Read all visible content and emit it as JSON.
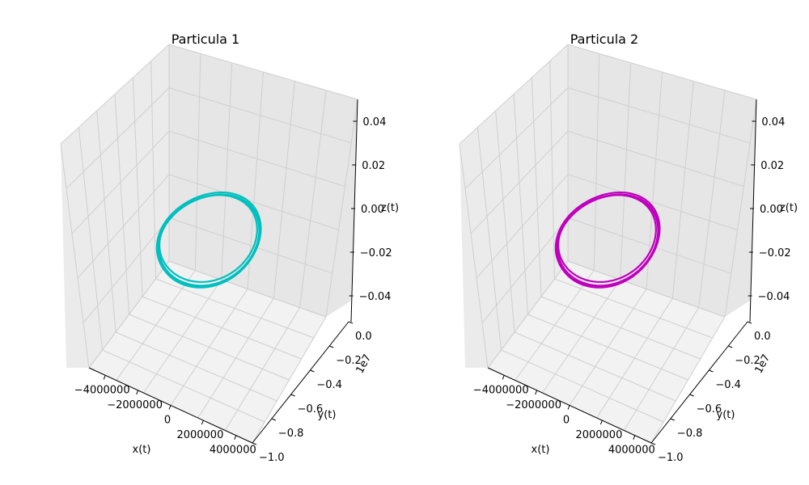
{
  "chart_data": [
    {
      "type": "line3d",
      "title": "Particula 1",
      "xlabel": "x(t)",
      "ylabel": "y(t)",
      "zlabel": "z(t)",
      "color": "#00bfbf",
      "x_ticks": [
        "−4000000",
        "−2000000",
        "0",
        "2000000",
        "4000000"
      ],
      "x_tick_values": [
        -4000000,
        -2000000,
        0,
        2000000,
        4000000
      ],
      "y_ticks": [
        "0.0",
        "−0.2",
        "−0.4",
        "−0.6",
        "−0.8",
        "−1.0"
      ],
      "y_tick_values": [
        0.0,
        -0.2,
        -0.4,
        -0.6,
        -0.8,
        -1.0
      ],
      "y_offset": "1e7",
      "z_ticks": [
        "0.04",
        "0.02",
        "0.00",
        "−0.02",
        "−0.04"
      ],
      "z_tick_values": [
        0.04,
        0.02,
        0.0,
        -0.02,
        -0.04
      ],
      "xlim": [
        -5000000,
        5000000
      ],
      "ylim": [
        -10000000,
        0
      ],
      "zlim": [
        -0.05,
        0.05
      ],
      "orbits": [
        {
          "cx": 0,
          "cy": -5000000,
          "rx": 2700000,
          "ry": 3750000
        },
        {
          "cx": 50000,
          "cy": -5100000,
          "rx": 2650000,
          "ry": 3700000
        },
        {
          "cx": -60000,
          "cy": -4950000,
          "rx": 2560000,
          "ry": 3450000
        },
        {
          "cx": 30000,
          "cy": -5050000,
          "rx": 2620000,
          "ry": 3600000
        }
      ],
      "z_value": 0
    },
    {
      "type": "line3d",
      "title": "Particula 2",
      "xlabel": "x(t)",
      "ylabel": "y(t)",
      "zlabel": "z(t)",
      "color": "#bf00bf",
      "x_ticks": [
        "−4000000",
        "−2000000",
        "0",
        "2000000",
        "4000000"
      ],
      "x_tick_values": [
        -4000000,
        -2000000,
        0,
        2000000,
        4000000
      ],
      "y_ticks": [
        "0.0",
        "−0.2",
        "−0.4",
        "−0.6",
        "−0.8",
        "−1.0"
      ],
      "y_tick_values": [
        0.0,
        -0.2,
        -0.4,
        -0.6,
        -0.8,
        -1.0
      ],
      "y_offset": "1e7",
      "z_ticks": [
        "0.04",
        "0.02",
        "0.00",
        "−0.02",
        "−0.04"
      ],
      "z_tick_values": [
        0.04,
        0.02,
        0.0,
        -0.02,
        -0.04
      ],
      "xlim": [
        -5000000,
        5000000
      ],
      "ylim": [
        -10000000,
        0
      ],
      "zlim": [
        -0.05,
        0.05
      ],
      "orbits": [
        {
          "cx": 0,
          "cy": -5000000,
          "rx": 2700000,
          "ry": 3750000
        },
        {
          "cx": 50000,
          "cy": -5100000,
          "rx": 2650000,
          "ry": 3700000
        },
        {
          "cx": -60000,
          "cy": -4950000,
          "rx": 2560000,
          "ry": 3450000
        },
        {
          "cx": 30000,
          "cy": -5050000,
          "rx": 2620000,
          "ry": 3600000
        }
      ],
      "z_value": 0
    }
  ]
}
